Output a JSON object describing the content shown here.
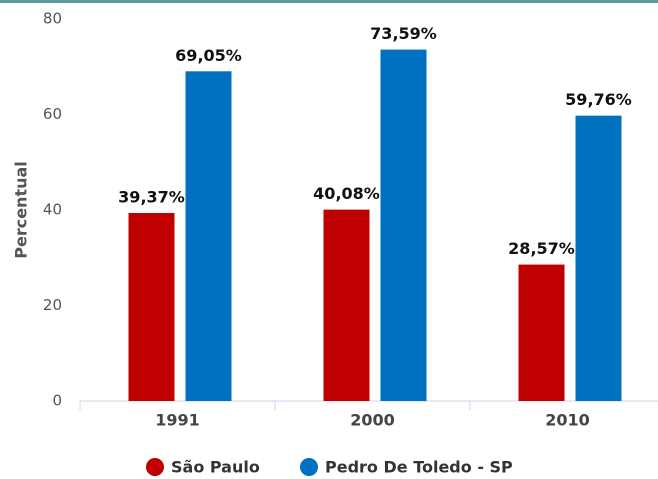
{
  "chart_data": {
    "type": "bar",
    "y_label": "Percentual",
    "categories": [
      "1991",
      "2000",
      "2010"
    ],
    "series": [
      {
        "name": "São Paulo",
        "color": "#c00000",
        "values": [
          39.37,
          40.08,
          28.57
        ],
        "value_labels": [
          "39,37%",
          "40,08%",
          "28,57%"
        ]
      },
      {
        "name": "Pedro De Toledo - SP",
        "color": "#0070c0",
        "values": [
          69.05,
          73.59,
          59.76
        ],
        "value_labels": [
          "69,05%",
          "73,59%",
          "59,76%"
        ]
      }
    ],
    "ylim": [
      0,
      80
    ],
    "yticks": [
      0,
      20,
      40,
      60,
      80
    ],
    "grid": false
  }
}
